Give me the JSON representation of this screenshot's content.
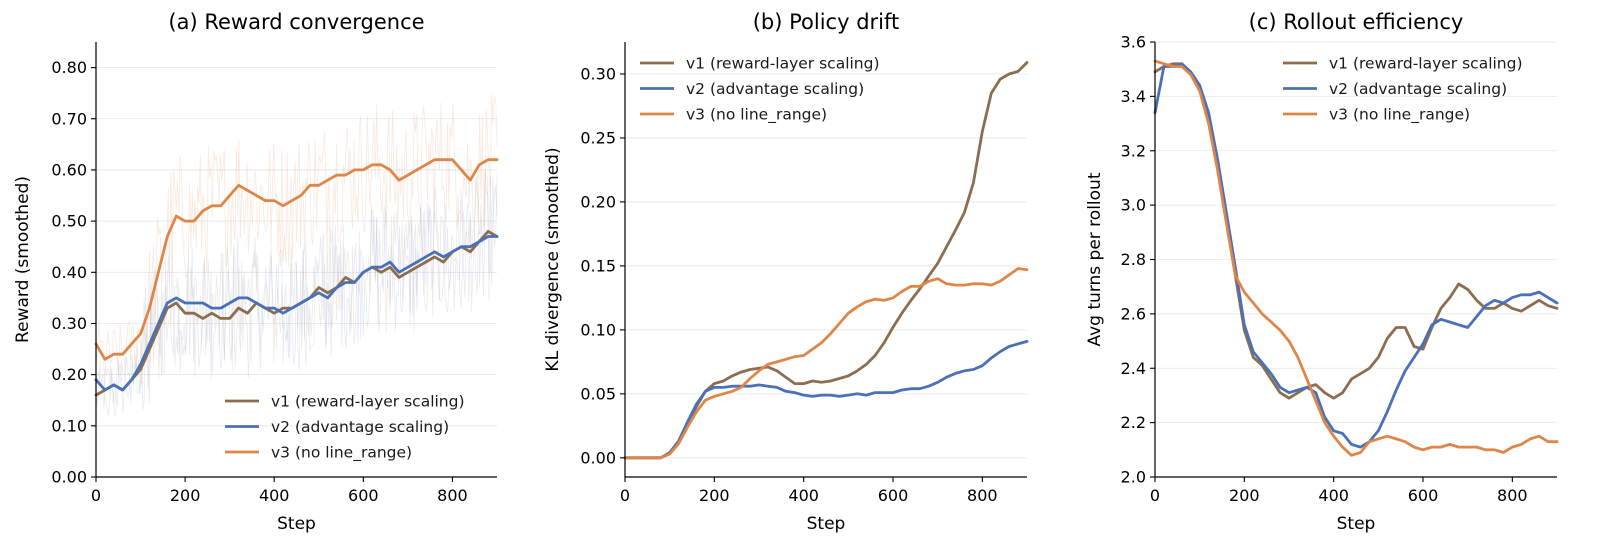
{
  "chart_data": [
    {
      "type": "line",
      "title": "(a) Reward convergence",
      "xlabel": "Step",
      "ylabel": "Reward (smoothed)",
      "xlim": [
        0,
        900
      ],
      "ylim": [
        0.0,
        0.85
      ],
      "xticks": [
        0,
        200,
        400,
        600,
        800
      ],
      "yticks": [
        0.0,
        0.1,
        0.2,
        0.3,
        0.4,
        0.5,
        0.6,
        0.7,
        0.8
      ],
      "ytick_format": 2,
      "grid": "horizontal",
      "legend_position": "lower-right",
      "raw_band": true,
      "series": [
        {
          "name": "v1 (reward-layer scaling)",
          "color": "#8c6d4f",
          "x": [
            0,
            20,
            40,
            60,
            80,
            100,
            120,
            140,
            160,
            180,
            200,
            220,
            240,
            260,
            280,
            300,
            320,
            340,
            360,
            380,
            400,
            420,
            440,
            460,
            480,
            500,
            520,
            540,
            560,
            580,
            600,
            620,
            640,
            660,
            680,
            700,
            720,
            740,
            760,
            780,
            800,
            820,
            840,
            860,
            880,
            900
          ],
          "y": [
            0.16,
            0.17,
            0.18,
            0.17,
            0.19,
            0.21,
            0.25,
            0.29,
            0.33,
            0.34,
            0.32,
            0.32,
            0.31,
            0.32,
            0.31,
            0.31,
            0.33,
            0.32,
            0.34,
            0.33,
            0.32,
            0.33,
            0.33,
            0.34,
            0.35,
            0.37,
            0.36,
            0.37,
            0.39,
            0.38,
            0.4,
            0.41,
            0.4,
            0.41,
            0.39,
            0.4,
            0.41,
            0.42,
            0.43,
            0.42,
            0.44,
            0.45,
            0.44,
            0.46,
            0.48,
            0.47
          ]
        },
        {
          "name": "v2 (advantage scaling)",
          "color": "#4a70b8",
          "x": [
            0,
            20,
            40,
            60,
            80,
            100,
            120,
            140,
            160,
            180,
            200,
            220,
            240,
            260,
            280,
            300,
            320,
            340,
            360,
            380,
            400,
            420,
            440,
            460,
            480,
            500,
            520,
            540,
            560,
            580,
            600,
            620,
            640,
            660,
            680,
            700,
            720,
            740,
            760,
            780,
            800,
            820,
            840,
            860,
            880,
            900
          ],
          "y": [
            0.19,
            0.17,
            0.18,
            0.17,
            0.19,
            0.22,
            0.26,
            0.3,
            0.34,
            0.35,
            0.34,
            0.34,
            0.34,
            0.33,
            0.33,
            0.34,
            0.35,
            0.35,
            0.34,
            0.33,
            0.33,
            0.32,
            0.33,
            0.34,
            0.35,
            0.36,
            0.35,
            0.37,
            0.38,
            0.38,
            0.4,
            0.41,
            0.41,
            0.42,
            0.4,
            0.41,
            0.42,
            0.43,
            0.44,
            0.43,
            0.44,
            0.45,
            0.45,
            0.46,
            0.47,
            0.47
          ]
        },
        {
          "name": "v3 (no line_range)",
          "color": "#e08548",
          "x": [
            0,
            20,
            40,
            60,
            80,
            100,
            120,
            140,
            160,
            180,
            200,
            220,
            240,
            260,
            280,
            300,
            320,
            340,
            360,
            380,
            400,
            420,
            440,
            460,
            480,
            500,
            520,
            540,
            560,
            580,
            600,
            620,
            640,
            660,
            680,
            700,
            720,
            740,
            760,
            780,
            800,
            820,
            840,
            860,
            880,
            900
          ],
          "y": [
            0.26,
            0.23,
            0.24,
            0.24,
            0.26,
            0.28,
            0.33,
            0.4,
            0.47,
            0.51,
            0.5,
            0.5,
            0.52,
            0.53,
            0.53,
            0.55,
            0.57,
            0.56,
            0.55,
            0.54,
            0.54,
            0.53,
            0.54,
            0.55,
            0.57,
            0.57,
            0.58,
            0.59,
            0.59,
            0.6,
            0.6,
            0.61,
            0.61,
            0.6,
            0.58,
            0.59,
            0.6,
            0.61,
            0.62,
            0.62,
            0.62,
            0.6,
            0.58,
            0.61,
            0.62,
            0.62
          ]
        }
      ]
    },
    {
      "type": "line",
      "title": "(b) Policy drift",
      "xlabel": "Step",
      "ylabel": "KL divergence (smoothed)",
      "xlim": [
        0,
        900
      ],
      "ylim": [
        -0.015,
        0.325
      ],
      "xticks": [
        0,
        200,
        400,
        600,
        800
      ],
      "yticks": [
        0.0,
        0.05,
        0.1,
        0.15,
        0.2,
        0.25,
        0.3
      ],
      "ytick_format": 2,
      "grid": "horizontal",
      "legend_position": "top-left",
      "raw_band": false,
      "series": [
        {
          "name": "v1 (reward-layer scaling)",
          "color": "#8c6d4f",
          "x": [
            0,
            40,
            80,
            100,
            120,
            140,
            160,
            180,
            200,
            220,
            240,
            260,
            280,
            300,
            320,
            340,
            360,
            380,
            400,
            420,
            440,
            460,
            480,
            500,
            520,
            540,
            560,
            580,
            600,
            620,
            640,
            660,
            680,
            700,
            720,
            740,
            760,
            780,
            800,
            820,
            840,
            860,
            880,
            900
          ],
          "y": [
            0.0,
            0.0,
            0.0,
            0.004,
            0.013,
            0.027,
            0.04,
            0.052,
            0.058,
            0.06,
            0.064,
            0.067,
            0.069,
            0.07,
            0.071,
            0.068,
            0.063,
            0.058,
            0.058,
            0.06,
            0.059,
            0.06,
            0.062,
            0.064,
            0.068,
            0.073,
            0.08,
            0.09,
            0.102,
            0.113,
            0.123,
            0.132,
            0.142,
            0.152,
            0.165,
            0.178,
            0.192,
            0.215,
            0.255,
            0.285,
            0.296,
            0.3,
            0.302,
            0.309
          ]
        },
        {
          "name": "v2 (advantage scaling)",
          "color": "#4a70b8",
          "x": [
            0,
            40,
            80,
            100,
            120,
            140,
            160,
            180,
            200,
            220,
            240,
            260,
            280,
            300,
            320,
            340,
            360,
            380,
            400,
            420,
            440,
            460,
            480,
            500,
            520,
            540,
            560,
            580,
            600,
            620,
            640,
            660,
            680,
            700,
            720,
            740,
            760,
            780,
            800,
            820,
            840,
            860,
            880,
            900
          ],
          "y": [
            0.0,
            0.0,
            0.0,
            0.004,
            0.013,
            0.028,
            0.042,
            0.052,
            0.055,
            0.055,
            0.056,
            0.056,
            0.056,
            0.057,
            0.056,
            0.055,
            0.052,
            0.051,
            0.049,
            0.048,
            0.049,
            0.049,
            0.048,
            0.049,
            0.05,
            0.049,
            0.051,
            0.051,
            0.051,
            0.053,
            0.054,
            0.054,
            0.056,
            0.059,
            0.063,
            0.066,
            0.068,
            0.069,
            0.072,
            0.078,
            0.083,
            0.087,
            0.089,
            0.091
          ]
        },
        {
          "name": "v3 (no line_range)",
          "color": "#e08548",
          "x": [
            0,
            40,
            80,
            100,
            120,
            140,
            160,
            180,
            200,
            220,
            240,
            260,
            280,
            300,
            320,
            340,
            360,
            380,
            400,
            420,
            440,
            460,
            480,
            500,
            520,
            540,
            560,
            580,
            600,
            620,
            640,
            660,
            680,
            700,
            720,
            740,
            760,
            780,
            800,
            820,
            840,
            860,
            880,
            900
          ],
          "y": [
            0.0,
            0.0,
            0.0,
            0.003,
            0.011,
            0.024,
            0.036,
            0.045,
            0.048,
            0.05,
            0.052,
            0.055,
            0.062,
            0.068,
            0.073,
            0.075,
            0.077,
            0.079,
            0.08,
            0.085,
            0.09,
            0.097,
            0.105,
            0.113,
            0.118,
            0.122,
            0.124,
            0.123,
            0.125,
            0.13,
            0.134,
            0.134,
            0.138,
            0.14,
            0.136,
            0.135,
            0.135,
            0.136,
            0.136,
            0.135,
            0.138,
            0.143,
            0.148,
            0.147
          ]
        }
      ]
    },
    {
      "type": "line",
      "title": "(c) Rollout efficiency",
      "xlabel": "Step",
      "ylabel": "Avg turns per rollout",
      "xlim": [
        0,
        900
      ],
      "ylim": [
        2.0,
        3.6
      ],
      "xticks": [
        0,
        200,
        400,
        600,
        800
      ],
      "yticks": [
        2.0,
        2.2,
        2.4,
        2.6,
        2.8,
        3.0,
        3.2,
        3.4,
        3.6
      ],
      "ytick_format": 1,
      "grid": "horizontal",
      "legend_position": "top-right",
      "raw_band": false,
      "series": [
        {
          "name": "v1 (reward-layer scaling)",
          "color": "#8c6d4f",
          "x": [
            0,
            20,
            40,
            60,
            80,
            100,
            120,
            140,
            160,
            180,
            200,
            220,
            240,
            260,
            280,
            300,
            320,
            340,
            360,
            380,
            400,
            420,
            440,
            460,
            480,
            500,
            520,
            540,
            560,
            580,
            600,
            620,
            640,
            660,
            680,
            700,
            720,
            740,
            760,
            780,
            800,
            820,
            840,
            860,
            880,
            900
          ],
          "y": [
            3.49,
            3.51,
            3.52,
            3.52,
            3.49,
            3.44,
            3.32,
            3.15,
            2.95,
            2.74,
            2.54,
            2.44,
            2.41,
            2.36,
            2.31,
            2.29,
            2.31,
            2.33,
            2.34,
            2.31,
            2.29,
            2.31,
            2.36,
            2.38,
            2.4,
            2.44,
            2.51,
            2.55,
            2.55,
            2.48,
            2.47,
            2.55,
            2.62,
            2.66,
            2.71,
            2.69,
            2.65,
            2.62,
            2.62,
            2.64,
            2.62,
            2.61,
            2.63,
            2.65,
            2.63,
            2.62
          ]
        },
        {
          "name": "v2 (advantage scaling)",
          "color": "#4a70b8",
          "x": [
            0,
            20,
            40,
            60,
            80,
            100,
            120,
            140,
            160,
            180,
            200,
            220,
            240,
            260,
            280,
            300,
            320,
            340,
            360,
            380,
            400,
            420,
            440,
            460,
            480,
            500,
            520,
            540,
            560,
            580,
            600,
            620,
            640,
            660,
            680,
            700,
            720,
            740,
            760,
            780,
            800,
            820,
            840,
            860,
            880,
            900
          ],
          "y": [
            3.34,
            3.51,
            3.51,
            3.52,
            3.49,
            3.44,
            3.34,
            3.17,
            2.97,
            2.77,
            2.56,
            2.46,
            2.42,
            2.38,
            2.33,
            2.31,
            2.32,
            2.33,
            2.31,
            2.22,
            2.17,
            2.16,
            2.12,
            2.11,
            2.13,
            2.17,
            2.24,
            2.32,
            2.39,
            2.44,
            2.49,
            2.56,
            2.58,
            2.57,
            2.56,
            2.55,
            2.59,
            2.63,
            2.65,
            2.64,
            2.66,
            2.67,
            2.67,
            2.68,
            2.66,
            2.64
          ]
        },
        {
          "name": "v3 (no line_range)",
          "color": "#e08548",
          "x": [
            0,
            20,
            40,
            60,
            80,
            100,
            120,
            140,
            160,
            180,
            200,
            220,
            240,
            260,
            280,
            300,
            320,
            340,
            360,
            380,
            400,
            420,
            440,
            460,
            480,
            500,
            520,
            540,
            560,
            580,
            600,
            620,
            640,
            660,
            680,
            700,
            720,
            740,
            760,
            780,
            800,
            820,
            840,
            860,
            880,
            900
          ],
          "y": [
            3.53,
            3.52,
            3.51,
            3.51,
            3.48,
            3.42,
            3.3,
            3.13,
            2.93,
            2.74,
            2.68,
            2.64,
            2.6,
            2.57,
            2.54,
            2.5,
            2.44,
            2.36,
            2.28,
            2.2,
            2.15,
            2.11,
            2.08,
            2.09,
            2.13,
            2.14,
            2.15,
            2.14,
            2.13,
            2.11,
            2.1,
            2.11,
            2.11,
            2.12,
            2.11,
            2.11,
            2.11,
            2.1,
            2.1,
            2.09,
            2.11,
            2.12,
            2.14,
            2.15,
            2.13,
            2.13
          ]
        }
      ]
    }
  ]
}
